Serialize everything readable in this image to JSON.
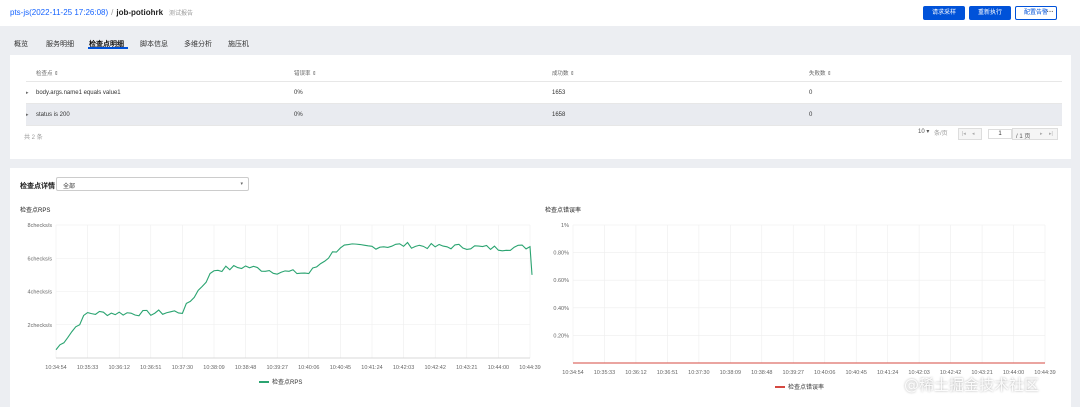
{
  "header": {
    "breadcrumb_link": "pts-js(2022-11-25 17:26:08)",
    "separator": "/",
    "job_name": "job-potiohrk",
    "tag": "测试报告",
    "buttons": {
      "request_sampling": "请求采样",
      "rerun": "重新执行",
      "config_alert": "配置告警"
    },
    "more": "···"
  },
  "tabs": [
    "概览",
    "服务明细",
    "检查点明细",
    "脚本信息",
    "多维分析",
    "施压机"
  ],
  "active_tab": 2,
  "table": {
    "columns": [
      "检查点",
      "错误率",
      "成功数",
      "失败数"
    ],
    "rows": [
      {
        "name": "body.args.name1 equals value1",
        "error_rate": "0%",
        "success": "1653",
        "failure": "0"
      },
      {
        "name": "status is 200",
        "error_rate": "0%",
        "success": "1658",
        "failure": "0"
      }
    ],
    "total": "共 2 条",
    "page_size": "10",
    "per_page": "条/页",
    "current_page": "1",
    "page_total": "/ 1 页"
  },
  "detail": {
    "label": "检查点详情",
    "select_value": "全部"
  },
  "chart_data": [
    {
      "type": "line",
      "title": "检查点RPS",
      "x": [
        "10:34:54",
        "10:35:33",
        "10:36:12",
        "10:36:51",
        "10:37:30",
        "10:38:09",
        "10:38:48",
        "10:39:27",
        "10:40:06",
        "10:40:45",
        "10:41:24",
        "10:42:03",
        "10:42:42",
        "10:43:21",
        "10:44:00",
        "10:44:39"
      ],
      "y_ticks": [
        "2checks/s",
        "4checks/s",
        "6checks/s",
        "8checks/s"
      ],
      "ylim": [
        0,
        8
      ],
      "series": [
        {
          "name": "检查点RPS",
          "color": "#2ba471",
          "values": [
            0.5,
            2.7,
            2.7,
            2.7,
            2.8,
            5.3,
            5.5,
            5.2,
            5.1,
            6.7,
            6.7,
            6.8,
            6.7,
            6.7,
            6.6,
            6.7
          ]
        }
      ]
    },
    {
      "type": "line",
      "title": "检查点错误率",
      "x": [
        "10:34:54",
        "10:35:33",
        "10:36:12",
        "10:36:51",
        "10:37:30",
        "10:38:09",
        "10:38:48",
        "10:39:27",
        "10:40:06",
        "10:40:45",
        "10:41:24",
        "10:42:03",
        "10:42:42",
        "10:43:21",
        "10:44:00",
        "10:44:39"
      ],
      "y_ticks": [
        "0.20%",
        "0.40%",
        "0.60%",
        "0.80%",
        "1%"
      ],
      "ylim": [
        0,
        1
      ],
      "series": [
        {
          "name": "检查点错误率",
          "color": "#d54941",
          "values": [
            0,
            0,
            0,
            0,
            0,
            0,
            0,
            0,
            0,
            0,
            0,
            0,
            0,
            0,
            0,
            0
          ]
        }
      ]
    }
  ],
  "watermark": "@稀土掘金技术社区"
}
